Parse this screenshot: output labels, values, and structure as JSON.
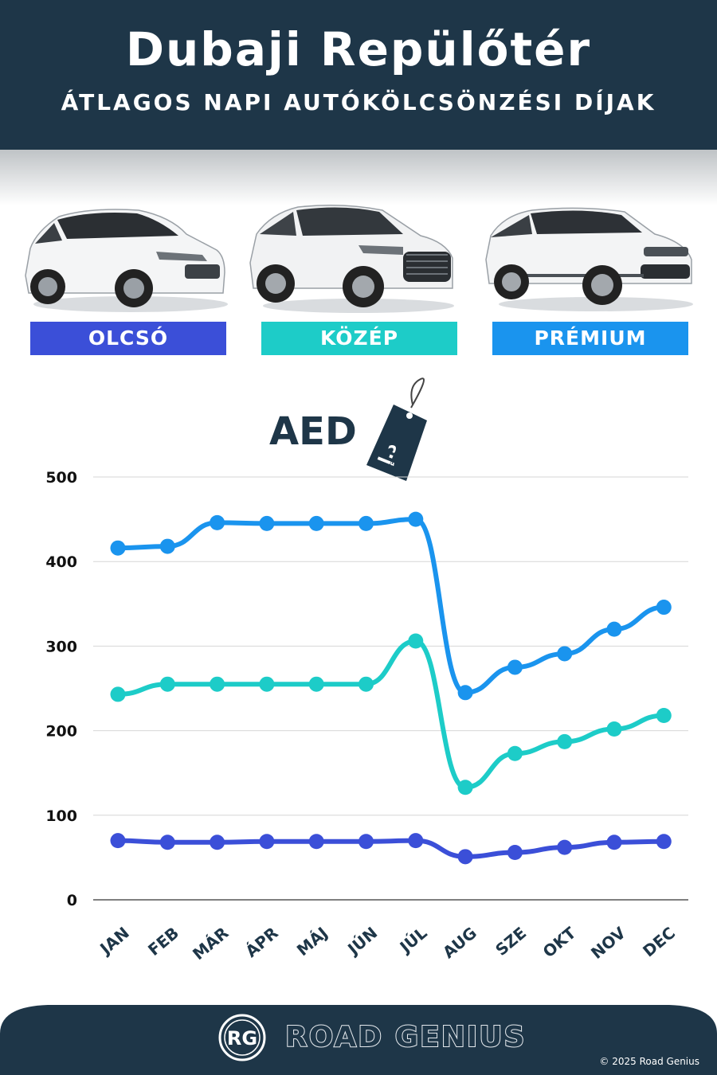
{
  "header": {
    "title": "Dubaji Repülőtér",
    "subtitle": "ÁTLAGOS NAPI AUTÓKÖLCSÖNZÉSI DÍJAK"
  },
  "categories": [
    {
      "label": "OLCSÓ",
      "color": "#3b4fd8",
      "icon": "hatchback-car-icon"
    },
    {
      "label": "KÖZÉP",
      "color": "#1dccc8",
      "icon": "suv-car-icon"
    },
    {
      "label": "PRÉMIUM",
      "color": "#1a94ee",
      "icon": "luxury-suv-car-icon"
    }
  ],
  "chart_data": {
    "type": "line",
    "unit_label": "AED",
    "price_tag_text": "د.إ",
    "categories": [
      "JAN",
      "FEB",
      "MÁR",
      "ÁPR",
      "MÁJ",
      "JÚN",
      "JÚL",
      "AUG",
      "SZE",
      "OKT",
      "NOV",
      "DEC"
    ],
    "series": [
      {
        "name": "PRÉMIUM",
        "color": "#1a94ee",
        "values": [
          416,
          418,
          446,
          445,
          445,
          445,
          450,
          245,
          275,
          291,
          320,
          346
        ]
      },
      {
        "name": "KÖZÉP",
        "color": "#1dccc8",
        "values": [
          243,
          255,
          255,
          255,
          255,
          255,
          306,
          133,
          173,
          187,
          202,
          218
        ]
      },
      {
        "name": "OLCSÓ",
        "color": "#3b4fd8",
        "values": [
          70,
          68,
          68,
          69,
          69,
          69,
          70,
          51,
          56,
          62,
          68,
          69
        ]
      }
    ],
    "ylim": [
      0,
      500
    ],
    "yticks": [
      "0",
      "100",
      "200",
      "300",
      "400",
      "500"
    ],
    "grid": true
  },
  "footer": {
    "logo_text": "RG",
    "brand": "ROAD GENIUS",
    "copyright": "© 2025 Road Genius"
  }
}
